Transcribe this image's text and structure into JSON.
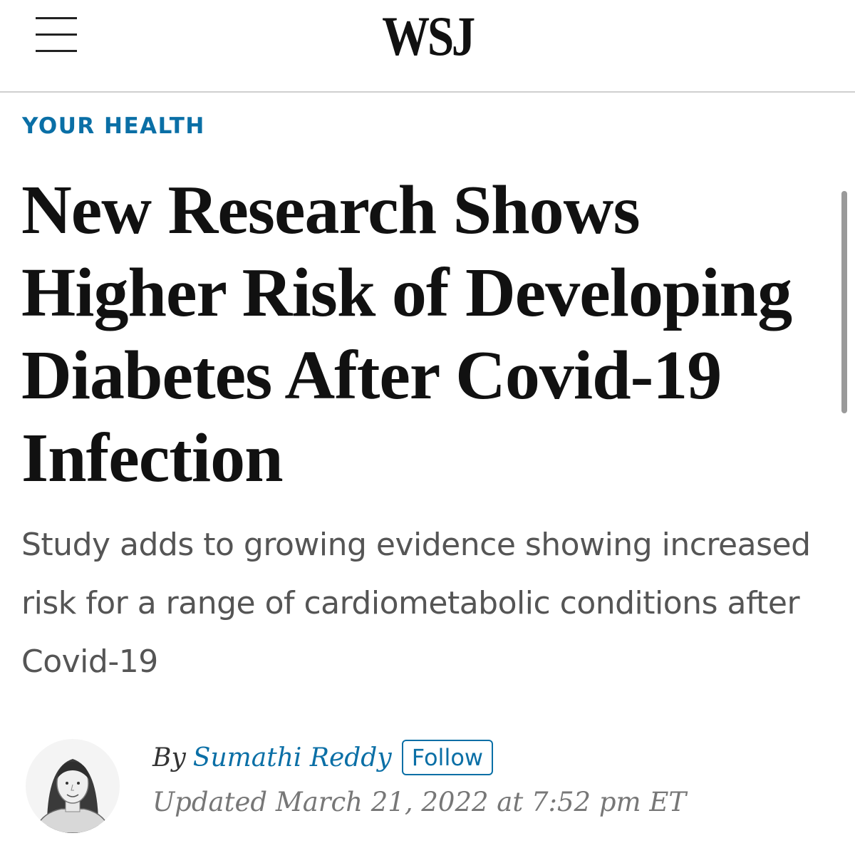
{
  "header": {
    "logo_text": "WSJ",
    "menu_icon": "hamburger-menu-icon"
  },
  "article": {
    "section": "YOUR HEALTH",
    "headline": "New Research Shows Higher Risk of Developing Diabetes After Covid-19 Infection",
    "dek": "Study adds to growing evidence showing increased risk for a range of cardiometabolic conditions after Covid-19",
    "byline": {
      "prefix": "By",
      "author": "Sumathi Reddy",
      "follow_label": "Follow",
      "updated": "Updated March 21, 2022 at 7:52 pm ET"
    }
  },
  "colors": {
    "accent": "#0a6fa6",
    "headline": "#111111",
    "dek": "#555555",
    "timestamp": "#777777"
  }
}
